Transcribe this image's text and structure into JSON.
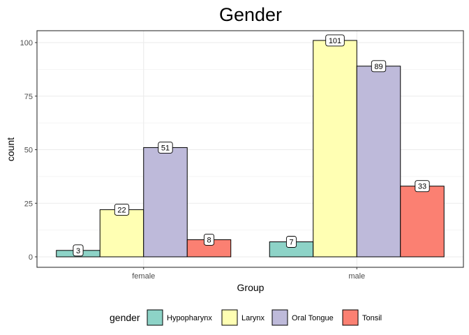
{
  "chart_data": {
    "type": "bar",
    "title": "Gender",
    "xlabel": "Group",
    "ylabel": "count",
    "categories": [
      "female",
      "male"
    ],
    "series": [
      {
        "name": "Hypopharynx",
        "color": "#8dd3c7",
        "values": [
          3,
          7
        ]
      },
      {
        "name": "Larynx",
        "color": "#ffffb3",
        "values": [
          22,
          101
        ]
      },
      {
        "name": "Oral Tongue",
        "color": "#bebada",
        "values": [
          51,
          89
        ]
      },
      {
        "name": "Tonsil",
        "color": "#fb8072",
        "values": [
          8,
          33
        ]
      }
    ],
    "ylim": [
      -5,
      106
    ],
    "yticks": [
      0,
      25,
      50,
      75,
      100
    ],
    "grid": true,
    "legend": {
      "title": "gender",
      "position": "bottom"
    }
  }
}
